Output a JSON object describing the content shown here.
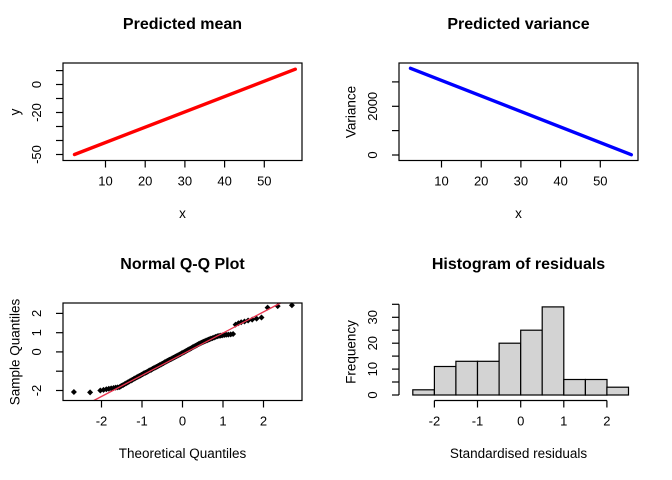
{
  "page": {
    "background": "#ffffff",
    "text_color": "#000000"
  },
  "chart_data": [
    {
      "id": "predicted-mean",
      "type": "line",
      "title": "Predicted mean",
      "xlabel": "x",
      "ylabel": "y",
      "xlim": [
        -0.7,
        59.5
      ],
      "ylim": [
        -54.3,
        15.4
      ],
      "grid": false,
      "box": true,
      "xticks": {
        "values": [
          10,
          20,
          30,
          40,
          50
        ],
        "labels": [
          "10",
          "20",
          "30",
          "40",
          "50"
        ]
      },
      "yticks": {
        "values": [
          10,
          0,
          -10,
          -20,
          -30,
          -40,
          -50
        ],
        "labels": [
          "",
          "0",
          "",
          "-20",
          "",
          "",
          "-50"
        ]
      },
      "series": [
        {
          "name": "predicted mean line",
          "color": "#ff0000",
          "width": 3.4,
          "points": [
            [
              2.2,
              -50
            ],
            [
              57.8,
              11
            ]
          ]
        }
      ]
    },
    {
      "id": "predicted-variance",
      "type": "line",
      "title": "Predicted variance",
      "xlabel": "x",
      "ylabel": "Variance",
      "xlim": [
        -0.7,
        59.5
      ],
      "ylim": [
        -226,
        3778
      ],
      "grid": false,
      "box": true,
      "xticks": {
        "values": [
          10,
          20,
          30,
          40,
          50
        ],
        "labels": [
          "10",
          "20",
          "30",
          "40",
          "50"
        ]
      },
      "yticks": {
        "values": [
          0,
          1000,
          2000,
          3000
        ],
        "labels": [
          "0",
          "",
          "2000",
          ""
        ]
      },
      "series": [
        {
          "name": "predicted variance line",
          "color": "#0000ff",
          "width": 3.4,
          "points": [
            [
              2.2,
              3560
            ],
            [
              57.8,
              12
            ]
          ]
        }
      ]
    },
    {
      "id": "qq-plot",
      "type": "scatter",
      "title": "Normal Q-Q Plot",
      "xlabel": "Theoretical Quantiles",
      "ylabel": "Sample Quantiles",
      "xlim": [
        -2.95,
        2.95
      ],
      "ylim": [
        -2.52,
        2.54
      ],
      "grid": false,
      "box": true,
      "xticks": {
        "values": [
          -2,
          -1,
          0,
          1,
          2
        ],
        "labels": [
          "-2",
          "-1",
          "0",
          "1",
          "2"
        ]
      },
      "yticks": {
        "values": [
          2,
          1,
          0,
          -1,
          -2
        ],
        "labels": [
          "2",
          "1",
          "0",
          "",
          "-2"
        ]
      },
      "marker": {
        "shape": "diamond",
        "color": "#000000",
        "size": 3
      },
      "refline": {
        "color": "#e8344e",
        "width": 1.3,
        "points": [
          [
            -2.19,
            -2.52
          ],
          [
            2.42,
            2.54
          ]
        ]
      },
      "points": [
        [
          -2.68,
          -2.08
        ],
        [
          -2.28,
          -2.1
        ],
        [
          -2.03,
          -2.0
        ],
        [
          -1.95,
          -1.97
        ],
        [
          -1.88,
          -1.94
        ],
        [
          -1.82,
          -1.91
        ],
        [
          -1.76,
          -1.89
        ],
        [
          -1.7,
          -1.87
        ],
        [
          -1.65,
          -1.85
        ],
        [
          -1.6,
          -1.84
        ],
        [
          -1.55,
          -1.82
        ],
        [
          -1.51,
          -1.76
        ],
        [
          -1.47,
          -1.72
        ],
        [
          -1.43,
          -1.67
        ],
        [
          -1.39,
          -1.62
        ],
        [
          -1.35,
          -1.58
        ],
        [
          -1.31,
          -1.53
        ],
        [
          -1.27,
          -1.48
        ],
        [
          -1.24,
          -1.45
        ],
        [
          -1.2,
          -1.4
        ],
        [
          -1.17,
          -1.37
        ],
        [
          -1.13,
          -1.32
        ],
        [
          -1.1,
          -1.29
        ],
        [
          -1.07,
          -1.25
        ],
        [
          -1.04,
          -1.22
        ],
        [
          -1.01,
          -1.18
        ],
        [
          -0.98,
          -1.15
        ],
        [
          -0.95,
          -1.11
        ],
        [
          -0.92,
          -1.09
        ],
        [
          -0.89,
          -1.05
        ],
        [
          -0.86,
          -1.02
        ],
        [
          -0.83,
          -0.98
        ],
        [
          -0.8,
          -0.94
        ],
        [
          -0.77,
          -0.92
        ],
        [
          -0.74,
          -0.88
        ],
        [
          -0.71,
          -0.85
        ],
        [
          -0.68,
          -0.81
        ],
        [
          -0.65,
          -0.78
        ],
        [
          -0.62,
          -0.75
        ],
        [
          -0.59,
          -0.72
        ],
        [
          -0.56,
          -0.68
        ],
        [
          -0.53,
          -0.65
        ],
        [
          -0.5,
          -0.61
        ],
        [
          -0.47,
          -0.58
        ],
        [
          -0.44,
          -0.54
        ],
        [
          -0.41,
          -0.51
        ],
        [
          -0.38,
          -0.47
        ],
        [
          -0.35,
          -0.44
        ],
        [
          -0.32,
          -0.41
        ],
        [
          -0.29,
          -0.38
        ],
        [
          -0.26,
          -0.34
        ],
        [
          -0.23,
          -0.31
        ],
        [
          -0.2,
          -0.28
        ],
        [
          -0.17,
          -0.24
        ],
        [
          -0.14,
          -0.21
        ],
        [
          -0.11,
          -0.18
        ],
        [
          -0.08,
          -0.14
        ],
        [
          -0.05,
          -0.11
        ],
        [
          -0.02,
          -0.07
        ],
        [
          0.01,
          -0.04
        ],
        [
          0.04,
          -0.01
        ],
        [
          0.07,
          0.03
        ],
        [
          0.1,
          0.06
        ],
        [
          0.13,
          0.1
        ],
        [
          0.16,
          0.13
        ],
        [
          0.19,
          0.17
        ],
        [
          0.22,
          0.2
        ],
        [
          0.25,
          0.24
        ],
        [
          0.28,
          0.27
        ],
        [
          0.31,
          0.31
        ],
        [
          0.34,
          0.34
        ],
        [
          0.37,
          0.37
        ],
        [
          0.4,
          0.41
        ],
        [
          0.43,
          0.44
        ],
        [
          0.46,
          0.47
        ],
        [
          0.49,
          0.5
        ],
        [
          0.52,
          0.53
        ],
        [
          0.55,
          0.56
        ],
        [
          0.58,
          0.59
        ],
        [
          0.61,
          0.61
        ],
        [
          0.64,
          0.64
        ],
        [
          0.67,
          0.66
        ],
        [
          0.7,
          0.69
        ],
        [
          0.74,
          0.72
        ],
        [
          0.78,
          0.75
        ],
        [
          0.82,
          0.78
        ],
        [
          0.86,
          0.81
        ],
        [
          0.9,
          0.83
        ],
        [
          0.94,
          0.85
        ],
        [
          0.98,
          0.86
        ],
        [
          1.03,
          0.88
        ],
        [
          1.08,
          0.89
        ],
        [
          1.13,
          0.9
        ],
        [
          1.19,
          0.91
        ],
        [
          1.25,
          0.93
        ],
        [
          1.31,
          1.42
        ],
        [
          1.38,
          1.49
        ],
        [
          1.45,
          1.54
        ],
        [
          1.53,
          1.58
        ],
        [
          1.62,
          1.63
        ],
        [
          1.72,
          1.68
        ],
        [
          1.83,
          1.73
        ],
        [
          1.95,
          1.79
        ],
        [
          2.1,
          2.3
        ],
        [
          2.35,
          2.38
        ],
        [
          2.7,
          2.42
        ]
      ]
    },
    {
      "id": "residual-histogram",
      "type": "hist",
      "title": "Histogram of residuals",
      "xlabel": "Standardised residuals",
      "ylabel": "Frequency",
      "xlim": [
        -2.82,
        2.72
      ],
      "ylim": [
        -2.12,
        35.5
      ],
      "grid": false,
      "box": false,
      "xticks": {
        "values": [
          -2,
          -1,
          0,
          1,
          2
        ],
        "labels": [
          "-2",
          "-1",
          "0",
          "1",
          "2"
        ]
      },
      "yticks": {
        "values": [
          0,
          5,
          10,
          15,
          20,
          25,
          30,
          35
        ],
        "labels": [
          "0",
          "",
          "10",
          "",
          "20",
          "",
          "30",
          ""
        ]
      },
      "bars": {
        "start": -2.5,
        "binwidth": 0.5,
        "counts": [
          2,
          11,
          13,
          13,
          20,
          25,
          34,
          6,
          6,
          3
        ],
        "fill": "#d3d3d3",
        "stroke": "#000000"
      }
    }
  ]
}
